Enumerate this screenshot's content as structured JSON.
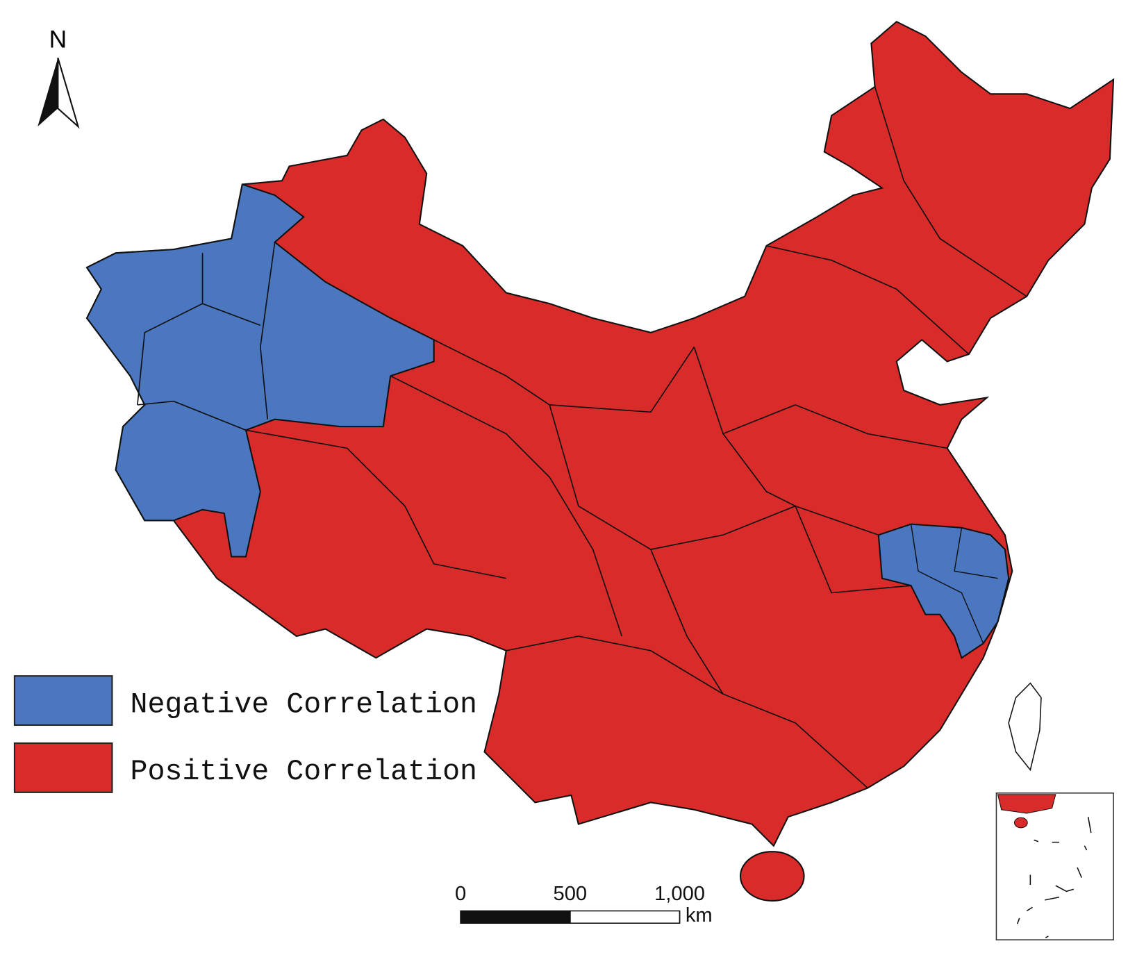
{
  "north_arrow": {
    "label": "N"
  },
  "legend": [
    {
      "label": "Negative Correlation",
      "color": "#4a77c0"
    },
    {
      "label": "Positive Correlation",
      "color": "#d92b2a"
    }
  ],
  "scale_bar": {
    "ticks": [
      0,
      500,
      {
        "value": 1000,
        "label": "1,000"
      }
    ],
    "unit": "km"
  }
}
